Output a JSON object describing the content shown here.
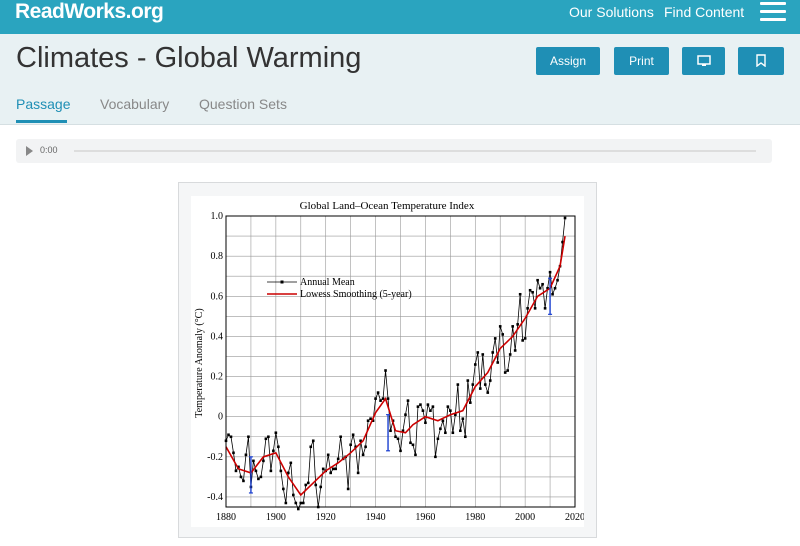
{
  "header": {
    "logo": "ReadWorks.org",
    "nav": [
      "Our Solutions",
      "Find Content"
    ]
  },
  "page": {
    "title": "Climates - Global Warming",
    "buttons": {
      "assign": "Assign",
      "print": "Print"
    },
    "tabs": [
      "Passage",
      "Vocabulary",
      "Question Sets"
    ],
    "active_tab": "Passage"
  },
  "audio": {
    "time": "0:00",
    "progress": 0
  },
  "colors": {
    "brand": "#2aa4bf",
    "button": "#1f8fb5",
    "smooth_line": "#cc0000"
  },
  "icons": {
    "screen_button": "monitor-icon",
    "bookmark_button": "bookmark-icon",
    "menu": "hamburger-icon",
    "audio": "play-icon"
  },
  "chart_data": {
    "type": "line",
    "title": "Global Land–Ocean Temperature Index",
    "xlabel": "",
    "ylabel": "Temperature Anomaly (°C)",
    "xlim": [
      1880,
      2020
    ],
    "ylim": [
      -0.45,
      1.0
    ],
    "xticks": [
      1880,
      1900,
      1920,
      1940,
      1960,
      1980,
      2000,
      2020
    ],
    "yticks": [
      -0.4,
      -0.2,
      0,
      0.2,
      0.4,
      0.6,
      0.8,
      1.0
    ],
    "ytick_labels": [
      "-0.4",
      "-0.2",
      "0",
      "0.2",
      "0.4",
      "0.6",
      "0.8",
      "1.0"
    ],
    "grid": true,
    "legend": "upper-left",
    "series": [
      {
        "name": "Annual Mean",
        "x": [
          1880,
          1881,
          1882,
          1883,
          1884,
          1885,
          1886,
          1887,
          1888,
          1889,
          1890,
          1891,
          1892,
          1893,
          1894,
          1895,
          1896,
          1897,
          1898,
          1899,
          1900,
          1901,
          1902,
          1903,
          1904,
          1905,
          1906,
          1907,
          1908,
          1909,
          1910,
          1911,
          1912,
          1913,
          1914,
          1915,
          1916,
          1917,
          1918,
          1919,
          1920,
          1921,
          1922,
          1923,
          1924,
          1925,
          1926,
          1927,
          1928,
          1929,
          1930,
          1931,
          1932,
          1933,
          1934,
          1935,
          1936,
          1937,
          1938,
          1939,
          1940,
          1941,
          1942,
          1943,
          1944,
          1945,
          1946,
          1947,
          1948,
          1949,
          1950,
          1951,
          1952,
          1953,
          1954,
          1955,
          1956,
          1957,
          1958,
          1959,
          1960,
          1961,
          1962,
          1963,
          1964,
          1965,
          1966,
          1967,
          1968,
          1969,
          1970,
          1971,
          1972,
          1973,
          1974,
          1975,
          1976,
          1977,
          1978,
          1979,
          1980,
          1981,
          1982,
          1983,
          1984,
          1985,
          1986,
          1987,
          1988,
          1989,
          1990,
          1991,
          1992,
          1993,
          1994,
          1995,
          1996,
          1997,
          1998,
          1999,
          2000,
          2001,
          2002,
          2003,
          2004,
          2005,
          2006,
          2007,
          2008,
          2009,
          2010,
          2011,
          2012,
          2013,
          2014,
          2015,
          2016
        ],
        "values": [
          -0.12,
          -0.09,
          -0.1,
          -0.18,
          -0.27,
          -0.25,
          -0.3,
          -0.32,
          -0.19,
          -0.1,
          -0.35,
          -0.22,
          -0.27,
          -0.31,
          -0.3,
          -0.22,
          -0.11,
          -0.1,
          -0.27,
          -0.17,
          -0.08,
          -0.15,
          -0.27,
          -0.36,
          -0.43,
          -0.28,
          -0.23,
          -0.39,
          -0.43,
          -0.46,
          -0.43,
          -0.43,
          -0.34,
          -0.33,
          -0.15,
          -0.12,
          -0.34,
          -0.45,
          -0.35,
          -0.26,
          -0.27,
          -0.19,
          -0.28,
          -0.26,
          -0.26,
          -0.21,
          -0.1,
          -0.21,
          -0.2,
          -0.36,
          -0.14,
          -0.09,
          -0.15,
          -0.28,
          -0.12,
          -0.19,
          -0.15,
          -0.02,
          -0.01,
          -0.02,
          0.09,
          0.12,
          0.08,
          0.09,
          0.23,
          0.09,
          -0.07,
          -0.02,
          -0.1,
          -0.11,
          -0.17,
          -0.07,
          0.01,
          0.08,
          -0.13,
          -0.14,
          -0.19,
          0.05,
          0.06,
          0.03,
          -0.03,
          0.06,
          0.03,
          0.05,
          -0.2,
          -0.11,
          -0.06,
          -0.02,
          -0.08,
          0.05,
          0.03,
          -0.08,
          0.01,
          0.16,
          -0.07,
          -0.01,
          -0.1,
          0.18,
          0.07,
          0.16,
          0.26,
          0.32,
          0.14,
          0.31,
          0.16,
          0.12,
          0.18,
          0.32,
          0.39,
          0.27,
          0.45,
          0.41,
          0.22,
          0.23,
          0.31,
          0.45,
          0.33,
          0.46,
          0.61,
          0.38,
          0.39,
          0.54,
          0.63,
          0.62,
          0.54,
          0.68,
          0.64,
          0.66,
          0.54,
          0.64,
          0.72,
          0.61,
          0.64,
          0.68,
          0.75,
          0.87,
          0.99
        ]
      },
      {
        "name": "Lowess Smoothing (5-year)",
        "x": [
          1880,
          1885,
          1890,
          1895,
          1900,
          1905,
          1910,
          1915,
          1920,
          1925,
          1930,
          1935,
          1940,
          1944,
          1948,
          1952,
          1955,
          1960,
          1965,
          1970,
          1975,
          1980,
          1985,
          1990,
          1995,
          2000,
          2005,
          2010,
          2014,
          2016
        ],
        "values": [
          -0.15,
          -0.26,
          -0.28,
          -0.2,
          -0.18,
          -0.3,
          -0.39,
          -0.33,
          -0.27,
          -0.23,
          -0.18,
          -0.12,
          0.02,
          0.09,
          -0.07,
          -0.08,
          -0.04,
          0.0,
          -0.02,
          0.01,
          0.03,
          0.15,
          0.22,
          0.34,
          0.4,
          0.49,
          0.6,
          0.64,
          0.75,
          0.9
        ]
      }
    ]
  }
}
